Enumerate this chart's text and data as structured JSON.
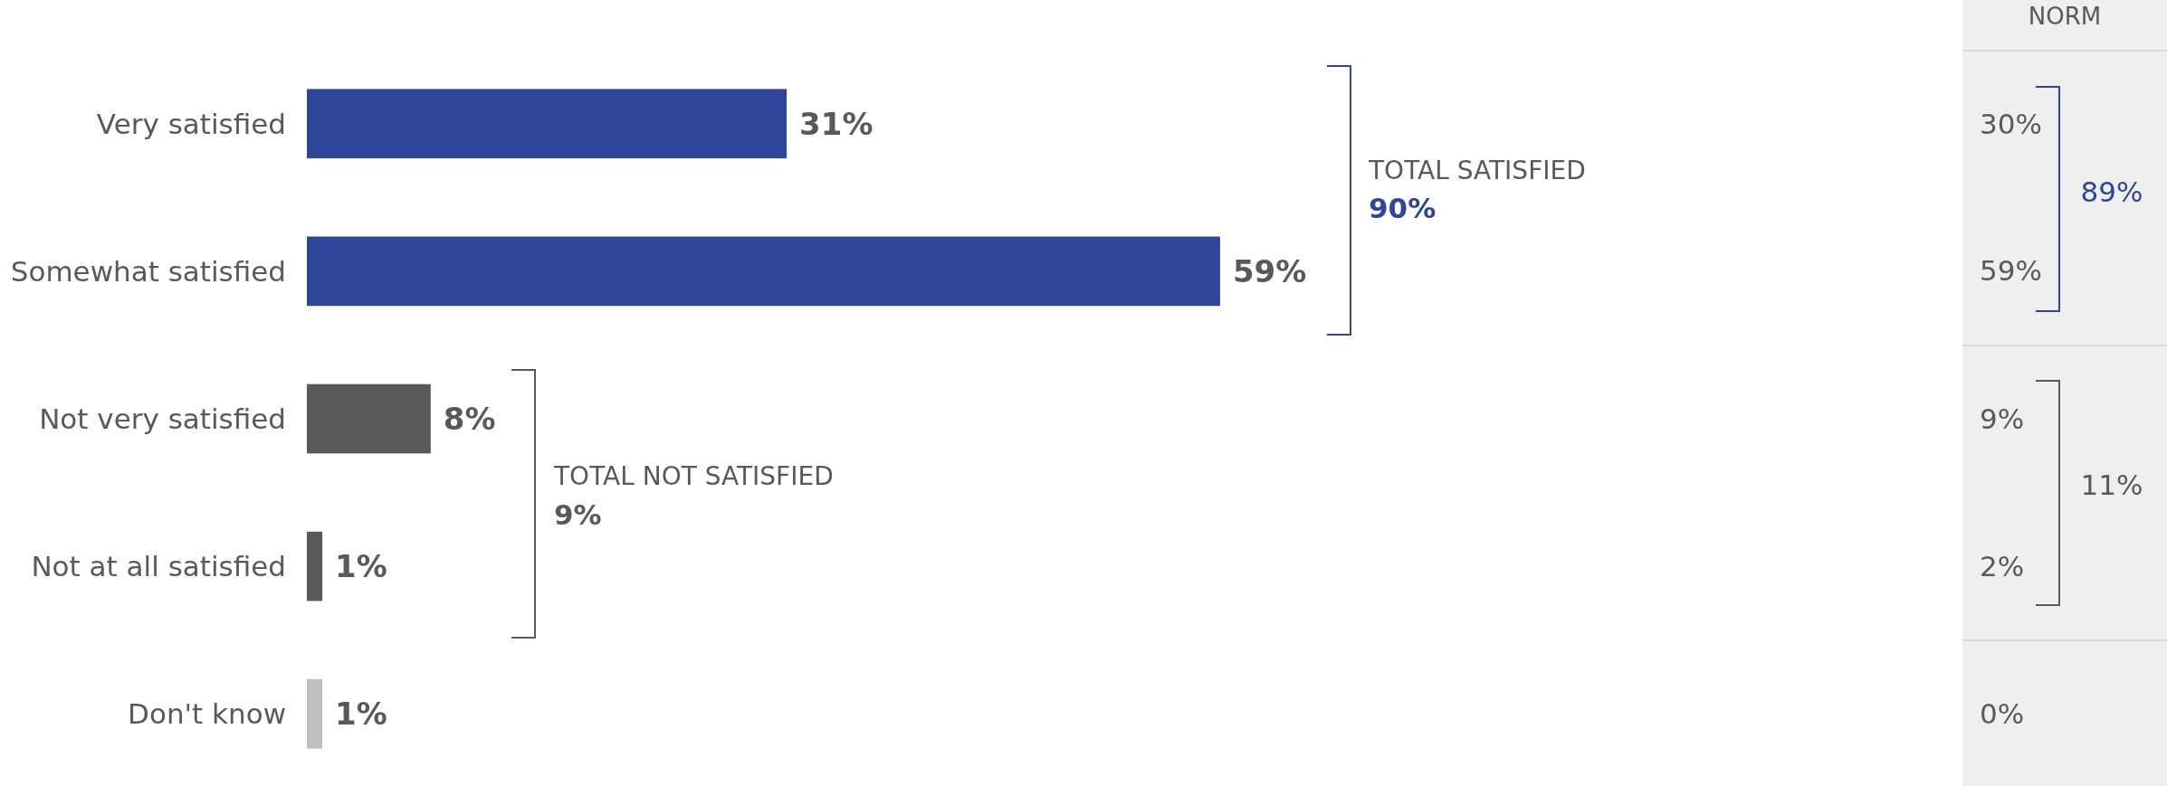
{
  "chart_data": {
    "type": "bar",
    "orientation": "horizontal",
    "categories": [
      "Very satisfied",
      "Somewhat satisfied",
      "Not very satisfied",
      "Not at all satisfied",
      "Don't know"
    ],
    "values": [
      31,
      59,
      8,
      1,
      1
    ],
    "value_labels": [
      "31%",
      "59%",
      "8%",
      "1%",
      "1%"
    ],
    "colors": [
      "#2e4699",
      "#2e4699",
      "#595959",
      "#595959",
      "#bfbfbf"
    ],
    "annotations": [
      "TOTAL SATISFIED",
      "90%",
      "TOTAL NOT SATISFIED",
      "9%",
      "NORM",
      "30%",
      "59%",
      "89%",
      "9%",
      "2%",
      "11%",
      "0%"
    ]
  }
}
